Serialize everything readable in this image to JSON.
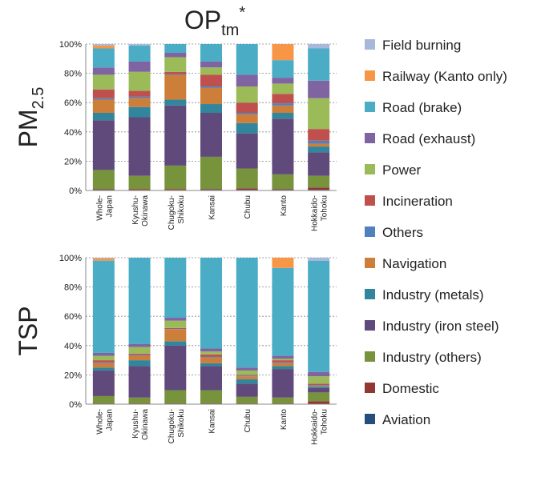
{
  "title": {
    "main": "OP",
    "sub": "tm",
    "sup": "*"
  },
  "chart_data": [
    {
      "type": "bar",
      "stacked": true,
      "grid": true,
      "ylabel": {
        "main": "PM",
        "sub": "2.5"
      },
      "categories": [
        "Whole-\nJapan",
        "Kyushu-\nOkinawa",
        "Chugoku-\nShikoku",
        "Kansai",
        "Chubu",
        "Kanto",
        "Hokkaido-\nTohoku"
      ],
      "ylim": [
        0,
        100
      ],
      "yticks": [
        {
          "value": 0,
          "label": "0%"
        },
        {
          "value": 20,
          "label": "20%"
        },
        {
          "value": 40,
          "label": "40%"
        },
        {
          "value": 60,
          "label": "60%"
        },
        {
          "value": 80,
          "label": "80%"
        },
        {
          "value": 100,
          "label": "100%"
        }
      ],
      "series": [
        {
          "name": "Field burning",
          "color": "#a6b9db",
          "values": [
            1,
            1,
            0,
            0,
            0,
            0,
            3
          ]
        },
        {
          "name": "Railway (Kanto only)",
          "color": "#f79646",
          "values": [
            2,
            0,
            0,
            0,
            0,
            11,
            0
          ]
        },
        {
          "name": "Road (brake)",
          "color": "#4bacc6",
          "values": [
            13,
            11,
            6,
            12,
            21,
            12,
            22
          ]
        },
        {
          "name": "Road (exhaust)",
          "color": "#8064a2",
          "values": [
            5,
            7,
            3,
            4,
            8,
            4,
            12
          ]
        },
        {
          "name": "Power",
          "color": "#9bbb59",
          "values": [
            10,
            13,
            10,
            5,
            11,
            7,
            21
          ]
        },
        {
          "name": "Incineration",
          "color": "#c0504d",
          "values": [
            6,
            4,
            1.5,
            8,
            7,
            6.5,
            8
          ]
        },
        {
          "name": "Others",
          "color": "#4f81bd",
          "values": [
            1,
            1,
            0.5,
            1,
            1,
            1.5,
            2
          ]
        },
        {
          "name": "Navigation",
          "color": "#cd7f3a",
          "values": [
            9,
            6,
            17,
            11,
            6,
            5,
            2
          ]
        },
        {
          "name": "Industry (metals)",
          "color": "#31859c",
          "values": [
            5,
            7,
            4,
            6,
            7,
            4,
            4
          ]
        },
        {
          "name": "Industry (iron steel)",
          "color": "#604a7b",
          "values": [
            34,
            40,
            41,
            30,
            24,
            38,
            16
          ]
        },
        {
          "name": "Industry (others)",
          "color": "#77933c",
          "values": [
            13,
            9,
            16,
            22,
            13.5,
            10,
            8
          ]
        },
        {
          "name": "Domestic",
          "color": "#943634",
          "values": [
            0.5,
            0.7,
            0.7,
            0.5,
            1,
            0.5,
            1.5
          ]
        },
        {
          "name": "Aviation",
          "color": "#254f7a",
          "values": [
            0.5,
            0.3,
            0.3,
            0.5,
            0.5,
            0.5,
            0.5
          ]
        }
      ]
    },
    {
      "type": "bar",
      "stacked": true,
      "grid": true,
      "ylabel": {
        "main": "TSP"
      },
      "categories": [
        "Whole-\nJapan",
        "Kyushu-\nOkinawa",
        "Chugoku-\nShikoku",
        "Kansai",
        "Chubu",
        "Kanto",
        "Hokkaido-\nTohoku"
      ],
      "ylim": [
        0,
        100
      ],
      "yticks": [
        {
          "value": 0,
          "label": "0%"
        },
        {
          "value": 20,
          "label": "20%"
        },
        {
          "value": 40,
          "label": "40%"
        },
        {
          "value": 60,
          "label": "60%"
        },
        {
          "value": 80,
          "label": "80%"
        },
        {
          "value": 100,
          "label": "100%"
        }
      ],
      "series": [
        {
          "name": "Field burning",
          "color": "#a6b9db",
          "values": [
            0.5,
            0,
            0,
            0,
            0,
            0,
            2
          ]
        },
        {
          "name": "Railway (Kanto only)",
          "color": "#f79646",
          "values": [
            1.5,
            0,
            0,
            0,
            0,
            7,
            0
          ]
        },
        {
          "name": "Road (brake)",
          "color": "#4bacc6",
          "values": [
            63,
            59,
            41,
            62,
            75,
            60,
            76
          ]
        },
        {
          "name": "Road (exhaust)",
          "color": "#8064a2",
          "values": [
            2,
            2,
            2,
            2,
            2,
            2,
            3
          ]
        },
        {
          "name": "Power",
          "color": "#9bbb59",
          "values": [
            3,
            4.5,
            5,
            2,
            3,
            1,
            5
          ]
        },
        {
          "name": "Incineration",
          "color": "#c0504d",
          "values": [
            1.5,
            1,
            0.7,
            1.5,
            0.5,
            1.5,
            1
          ]
        },
        {
          "name": "Others",
          "color": "#4f81bd",
          "values": [
            0.5,
            0.5,
            0.3,
            0.5,
            0.5,
            0.5,
            0.5
          ]
        },
        {
          "name": "Navigation",
          "color": "#cd7f3a",
          "values": [
            3,
            3,
            8,
            4,
            2,
            2,
            0.5
          ]
        },
        {
          "name": "Industry (metals)",
          "color": "#31859c",
          "values": [
            2,
            4,
            3,
            2,
            3,
            2,
            1
          ]
        },
        {
          "name": "Industry (iron steel)",
          "color": "#604a7b",
          "values": [
            17.5,
            21.5,
            30.5,
            16.5,
            9,
            19.5,
            3
          ]
        },
        {
          "name": "Industry (others)",
          "color": "#77933c",
          "values": [
            5,
            4,
            9,
            9,
            4.5,
            4,
            6
          ]
        },
        {
          "name": "Domestic",
          "color": "#943634",
          "values": [
            0.3,
            0.3,
            0.3,
            0.3,
            0.3,
            0.3,
            1.8
          ]
        },
        {
          "name": "Aviation",
          "color": "#254f7a",
          "values": [
            0.2,
            0.2,
            0.2,
            0.2,
            0.2,
            0.2,
            0.2
          ]
        }
      ]
    }
  ]
}
